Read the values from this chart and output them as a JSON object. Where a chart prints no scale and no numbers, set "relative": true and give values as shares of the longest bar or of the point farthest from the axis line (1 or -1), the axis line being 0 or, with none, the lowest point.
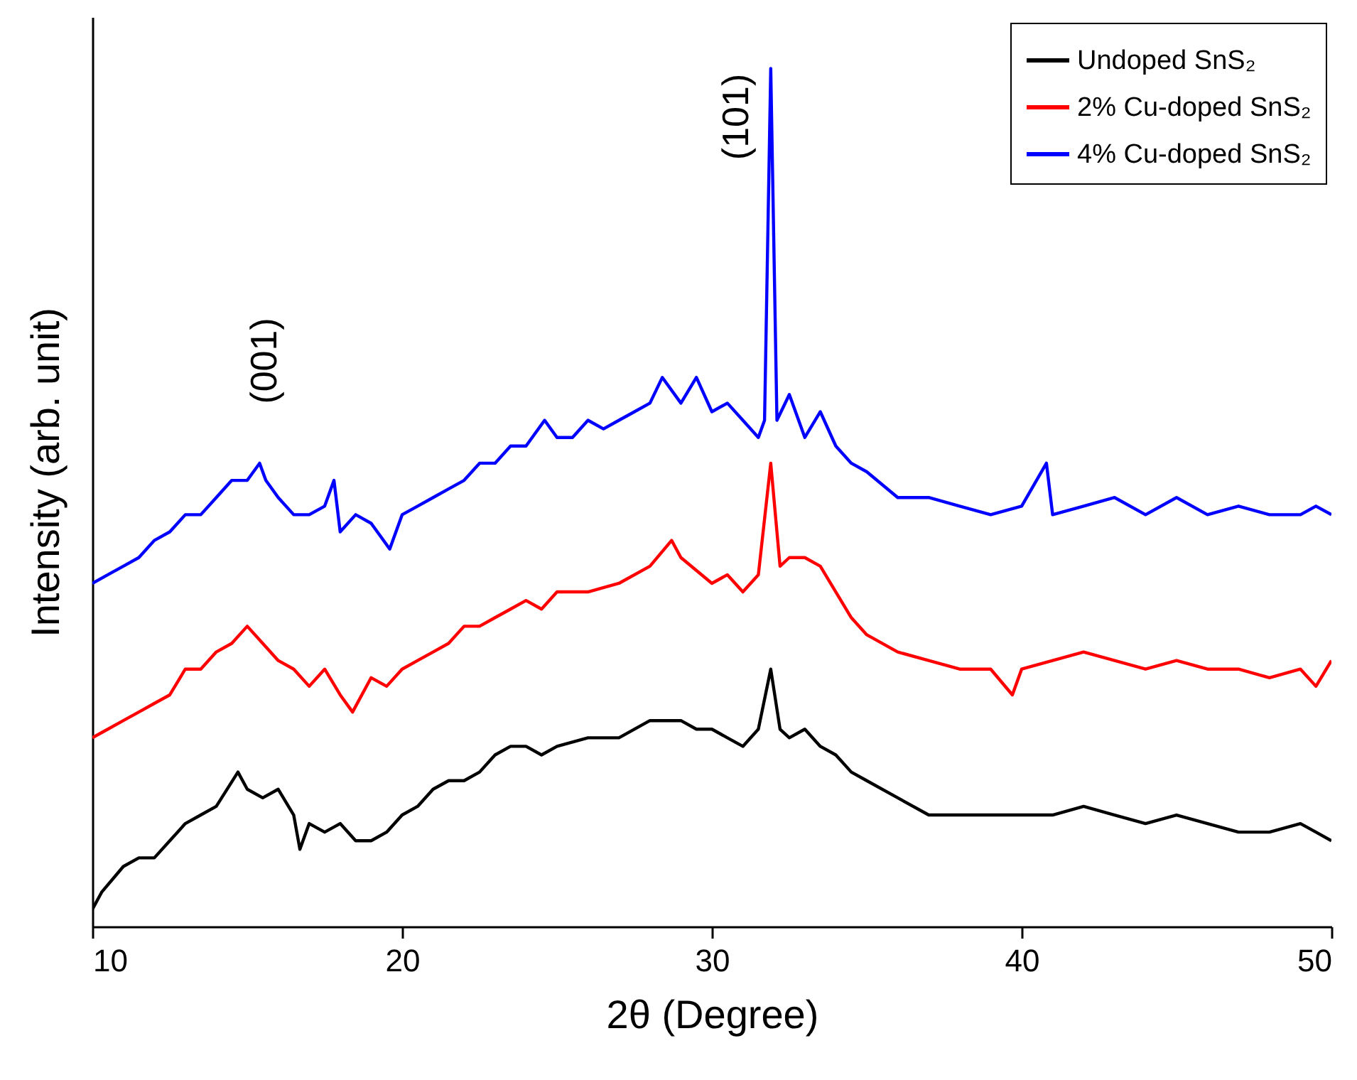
{
  "chart_data": {
    "type": "line",
    "relative": true,
    "xlabel": "2θ (Degree)",
    "ylabel": "Intensity (arb. unit)",
    "xlim": [
      10,
      50
    ],
    "xticks": [
      10,
      20,
      30,
      40,
      50
    ],
    "legend": "top right",
    "grid": false,
    "annotations": [
      {
        "text": "(001)",
        "x": 15.4,
        "y": 0.54
      },
      {
        "text": "(101)",
        "x": 31.9,
        "y": 1
      }
    ],
    "series": [
      {
        "name": "Undoped SnS₂",
        "color": "#000000",
        "x": [
          10,
          10.3,
          11,
          11.5,
          12,
          12.5,
          13,
          13.5,
          14,
          14.7,
          15,
          15.5,
          16,
          16.5,
          16.7,
          17,
          17.5,
          18,
          18.5,
          19,
          19.5,
          20,
          20.5,
          21,
          21.5,
          22,
          22.5,
          23,
          23.5,
          24,
          24.5,
          25,
          26,
          27,
          28,
          29,
          29.5,
          30,
          30.5,
          31,
          31.5,
          31.9,
          32.2,
          32.5,
          33,
          33.5,
          34,
          34.5,
          35,
          36,
          37,
          38,
          39,
          40,
          41,
          42,
          43,
          44,
          45,
          46,
          47,
          48,
          49,
          49.5,
          50
        ],
        "values": [
          0.02,
          0.04,
          0.07,
          0.08,
          0.08,
          0.1,
          0.12,
          0.13,
          0.14,
          0.18,
          0.16,
          0.15,
          0.16,
          0.13,
          0.09,
          0.12,
          0.11,
          0.12,
          0.1,
          0.1,
          0.11,
          0.13,
          0.14,
          0.16,
          0.17,
          0.17,
          0.18,
          0.2,
          0.21,
          0.21,
          0.2,
          0.21,
          0.22,
          0.22,
          0.24,
          0.24,
          0.23,
          0.23,
          0.22,
          0.21,
          0.23,
          0.3,
          0.23,
          0.22,
          0.23,
          0.21,
          0.2,
          0.18,
          0.17,
          0.15,
          0.13,
          0.13,
          0.13,
          0.13,
          0.13,
          0.14,
          0.13,
          0.12,
          0.13,
          0.12,
          0.11,
          0.11,
          0.12,
          0.11,
          0.1
        ]
      },
      {
        "name": "2% Cu-doped SnS₂",
        "color": "#ff0000",
        "x": [
          10,
          10.5,
          11,
          11.5,
          12,
          12.5,
          13,
          13.5,
          14,
          14.5,
          15,
          15.5,
          16,
          16.5,
          17,
          17.5,
          18,
          18.4,
          19,
          19.5,
          20,
          20.5,
          21,
          21.5,
          22,
          22.5,
          23,
          23.5,
          24,
          24.5,
          25,
          26,
          27,
          28,
          28.7,
          29,
          30,
          30.5,
          31,
          31.5,
          31.9,
          32.2,
          32.5,
          33,
          33.5,
          34,
          34.5,
          35,
          36,
          37,
          38,
          39,
          39.7,
          40,
          41,
          42,
          43,
          44,
          45,
          46,
          47,
          48,
          49,
          49.5,
          50
        ],
        "values": [
          0.22,
          0.23,
          0.24,
          0.25,
          0.26,
          0.27,
          0.3,
          0.3,
          0.32,
          0.33,
          0.35,
          0.33,
          0.31,
          0.3,
          0.28,
          0.3,
          0.27,
          0.25,
          0.29,
          0.28,
          0.3,
          0.31,
          0.32,
          0.33,
          0.35,
          0.35,
          0.36,
          0.37,
          0.38,
          0.37,
          0.39,
          0.39,
          0.4,
          0.42,
          0.45,
          0.43,
          0.4,
          0.41,
          0.39,
          0.41,
          0.54,
          0.42,
          0.43,
          0.43,
          0.42,
          0.39,
          0.36,
          0.34,
          0.32,
          0.31,
          0.3,
          0.3,
          0.27,
          0.3,
          0.31,
          0.32,
          0.31,
          0.3,
          0.31,
          0.3,
          0.3,
          0.29,
          0.3,
          0.28,
          0.31
        ]
      },
      {
        "name": "4% Cu-doped SnS₂",
        "color": "#0000ff",
        "x": [
          10,
          10.5,
          11,
          11.5,
          12,
          12.5,
          13,
          13.5,
          14,
          14.5,
          15,
          15.4,
          15.6,
          16,
          16.5,
          17,
          17.5,
          17.8,
          18,
          18.5,
          19,
          19.6,
          20,
          20.5,
          21,
          21.5,
          22,
          22.5,
          23,
          23.5,
          24,
          24.6,
          25,
          25.5,
          26,
          26.5,
          27,
          27.5,
          28,
          28.4,
          29,
          29.5,
          30,
          30.5,
          31,
          31.5,
          31.7,
          31.9,
          32.1,
          32.5,
          33,
          33.5,
          34,
          34.5,
          35,
          36,
          37,
          38,
          39,
          40,
          40.8,
          41,
          42,
          43,
          44,
          45,
          46,
          47,
          48,
          49,
          49.5,
          50
        ],
        "values": [
          0.4,
          0.41,
          0.42,
          0.43,
          0.45,
          0.46,
          0.48,
          0.48,
          0.5,
          0.52,
          0.52,
          0.54,
          0.52,
          0.5,
          0.48,
          0.48,
          0.49,
          0.52,
          0.46,
          0.48,
          0.47,
          0.44,
          0.48,
          0.49,
          0.5,
          0.51,
          0.52,
          0.54,
          0.54,
          0.56,
          0.56,
          0.59,
          0.57,
          0.57,
          0.59,
          0.58,
          0.59,
          0.6,
          0.61,
          0.64,
          0.61,
          0.64,
          0.6,
          0.61,
          0.59,
          0.57,
          0.59,
          1,
          0.59,
          0.62,
          0.57,
          0.6,
          0.56,
          0.54,
          0.53,
          0.5,
          0.5,
          0.49,
          0.48,
          0.49,
          0.54,
          0.48,
          0.49,
          0.5,
          0.48,
          0.5,
          0.48,
          0.49,
          0.48,
          0.48,
          0.49,
          0.48
        ]
      }
    ]
  }
}
